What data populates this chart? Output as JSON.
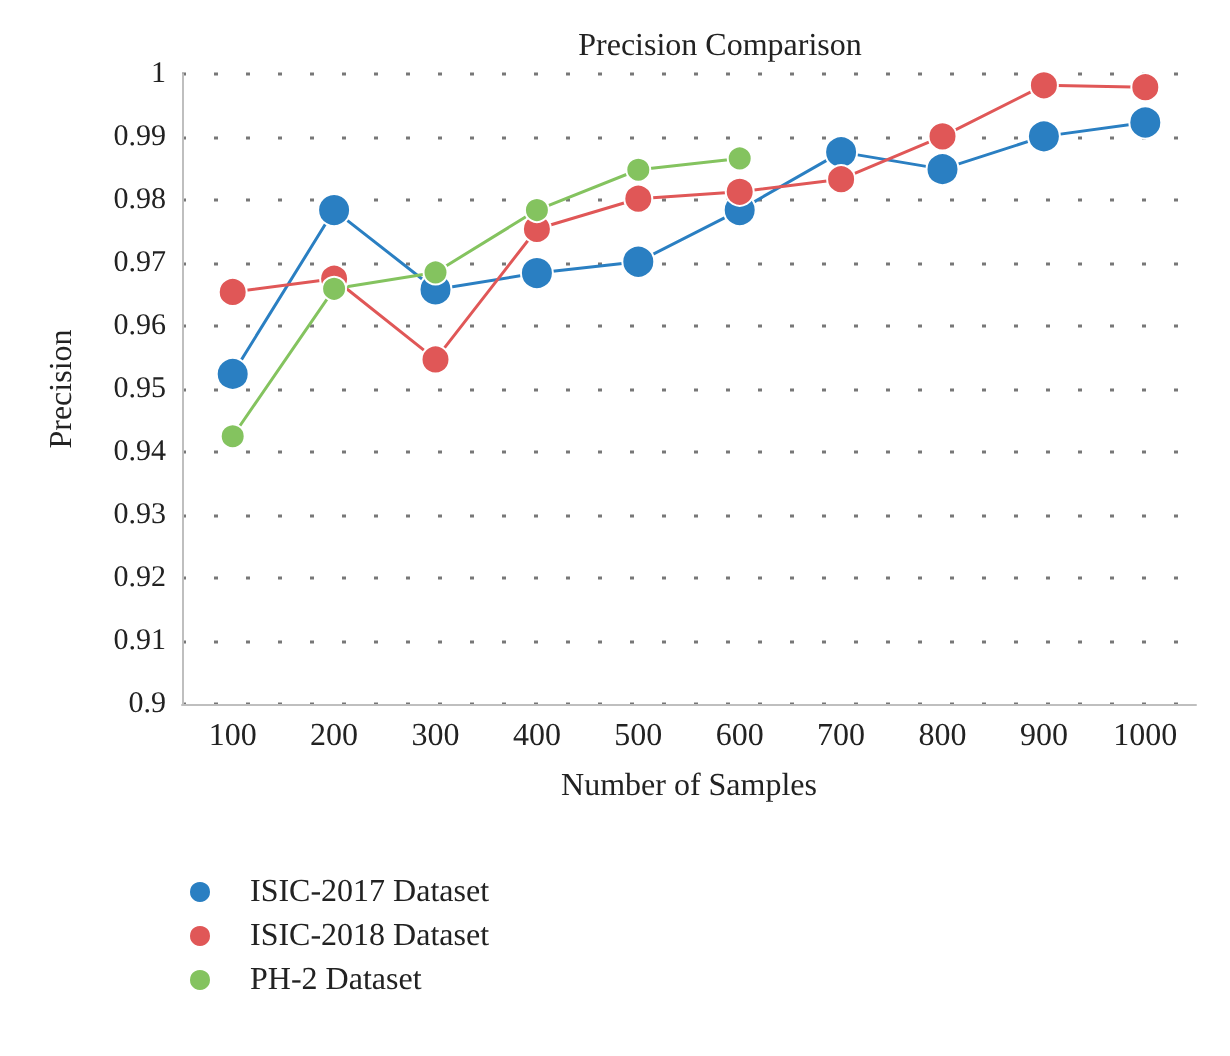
{
  "chart_data": {
    "type": "line",
    "title": "Precision Comparison",
    "xlabel": "Number of Samples",
    "ylabel": "Precision",
    "categories": [
      "100",
      "200",
      "300",
      "400",
      "500",
      "600",
      "700",
      "800",
      "900",
      "1000"
    ],
    "series": [
      {
        "name": "ISIC-2017 Dataset",
        "color": "#2a7fc2",
        "values": [
          0.9524,
          0.9784,
          0.9658,
          0.9684,
          0.9702,
          0.9784,
          0.9876,
          0.9849,
          0.9901,
          0.9923
        ]
      },
      {
        "name": "ISIC-2018 Dataset",
        "color": "#e05757",
        "values": [
          0.9654,
          0.9675,
          0.9547,
          0.9754,
          0.9802,
          0.9813,
          0.9833,
          0.9901,
          0.9982,
          0.9979
        ]
      },
      {
        "name": "PH-2 Dataset",
        "color": "#84c35f",
        "values": [
          0.9425,
          0.9659,
          0.9685,
          0.9784,
          0.9848,
          0.9866,
          null,
          null,
          null,
          null
        ]
      }
    ],
    "ylim": [
      0.9,
      1
    ],
    "yticks": [
      0.9,
      0.91,
      0.92,
      0.93,
      0.94,
      0.95,
      0.96,
      0.97,
      0.98,
      0.99,
      1
    ],
    "grid": "y",
    "legend": "bottom left",
    "marker": "circle",
    "line_style": "solid"
  }
}
